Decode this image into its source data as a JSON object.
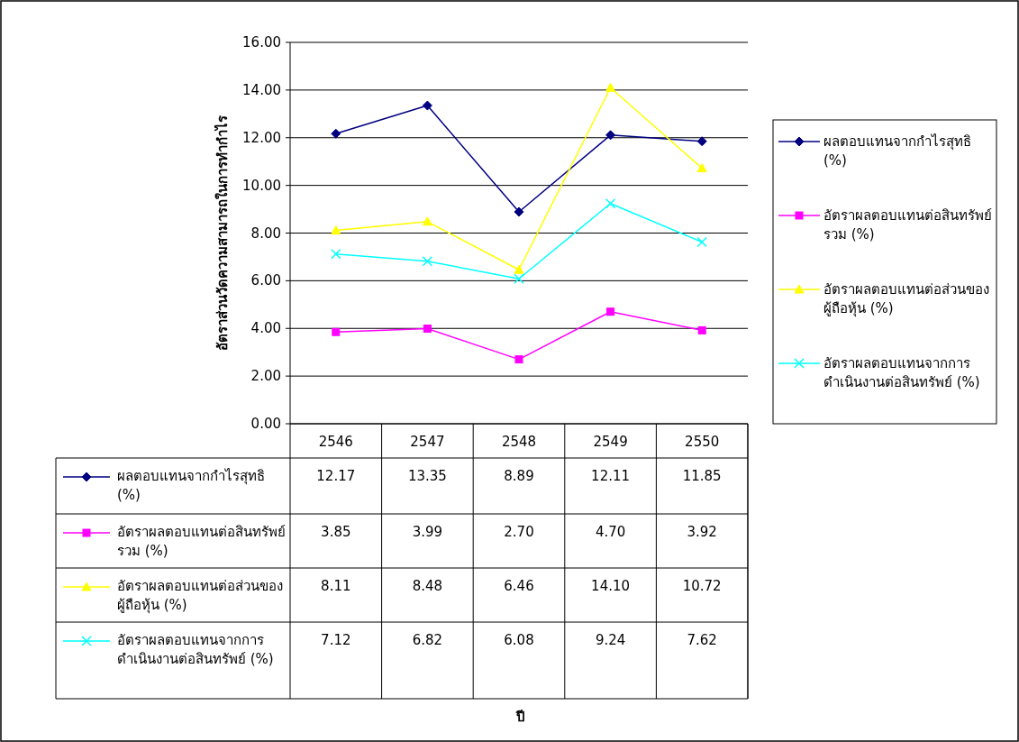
{
  "chart_data": {
    "type": "line",
    "ylabel": "อัตราส่วนวัดความสามารถในการทำกำไร",
    "annotations": [
      "ปี"
    ],
    "categories": [
      "2546",
      "2547",
      "2548",
      "2549",
      "2550"
    ],
    "ylim": [
      0,
      16
    ],
    "yticks": [
      {
        "value": 0,
        "label": "0.00"
      },
      {
        "value": 2,
        "label": "2.00"
      },
      {
        "value": 4,
        "label": "4.00"
      },
      {
        "value": 6,
        "label": "6.00"
      },
      {
        "value": 8,
        "label": "8.00"
      },
      {
        "value": 10,
        "label": "10.00"
      },
      {
        "value": 12,
        "label": "12.00"
      },
      {
        "value": 14,
        "label": "14.00"
      },
      {
        "value": 16,
        "label": "16.00"
      }
    ],
    "grid": "y",
    "legend": "right",
    "line_style": "solid",
    "series": [
      {
        "name": "ผลตอบแทนจากกำไรสุทธิ (%)",
        "color": "#000080",
        "marker": "diamond",
        "values": [
          12.17,
          13.35,
          8.89,
          12.11,
          11.85
        ],
        "value_labels": [
          "12.17",
          "13.35",
          "8.89",
          "12.11",
          "11.85"
        ]
      },
      {
        "name": "อัตราผลตอบแทนต่อสินทรัพย์รวม (%)",
        "color": "#ff00ff",
        "marker": "square",
        "values": [
          3.85,
          3.99,
          2.7,
          4.7,
          3.92
        ],
        "value_labels": [
          "3.85",
          "3.99",
          "2.70",
          "4.70",
          "3.92"
        ]
      },
      {
        "name": "อัตราผลตอบแทนต่อส่วนของผู้ถือหุ้น (%)",
        "color": "#ffff00",
        "marker": "triangle",
        "values": [
          8.11,
          8.48,
          6.46,
          14.1,
          10.72
        ],
        "value_labels": [
          "8.11",
          "8.48",
          "6.46",
          "14.10",
          "10.72"
        ]
      },
      {
        "name": "อัตราผลตอบแทนจากการดำเนินงานต่อสินทรัพย์ (%)",
        "color": "#00ffff",
        "marker": "cross",
        "values": [
          7.12,
          6.82,
          6.08,
          9.24,
          7.62
        ],
        "value_labels": [
          "7.12",
          "6.82",
          "6.08",
          "9.24",
          "7.62"
        ]
      }
    ]
  }
}
